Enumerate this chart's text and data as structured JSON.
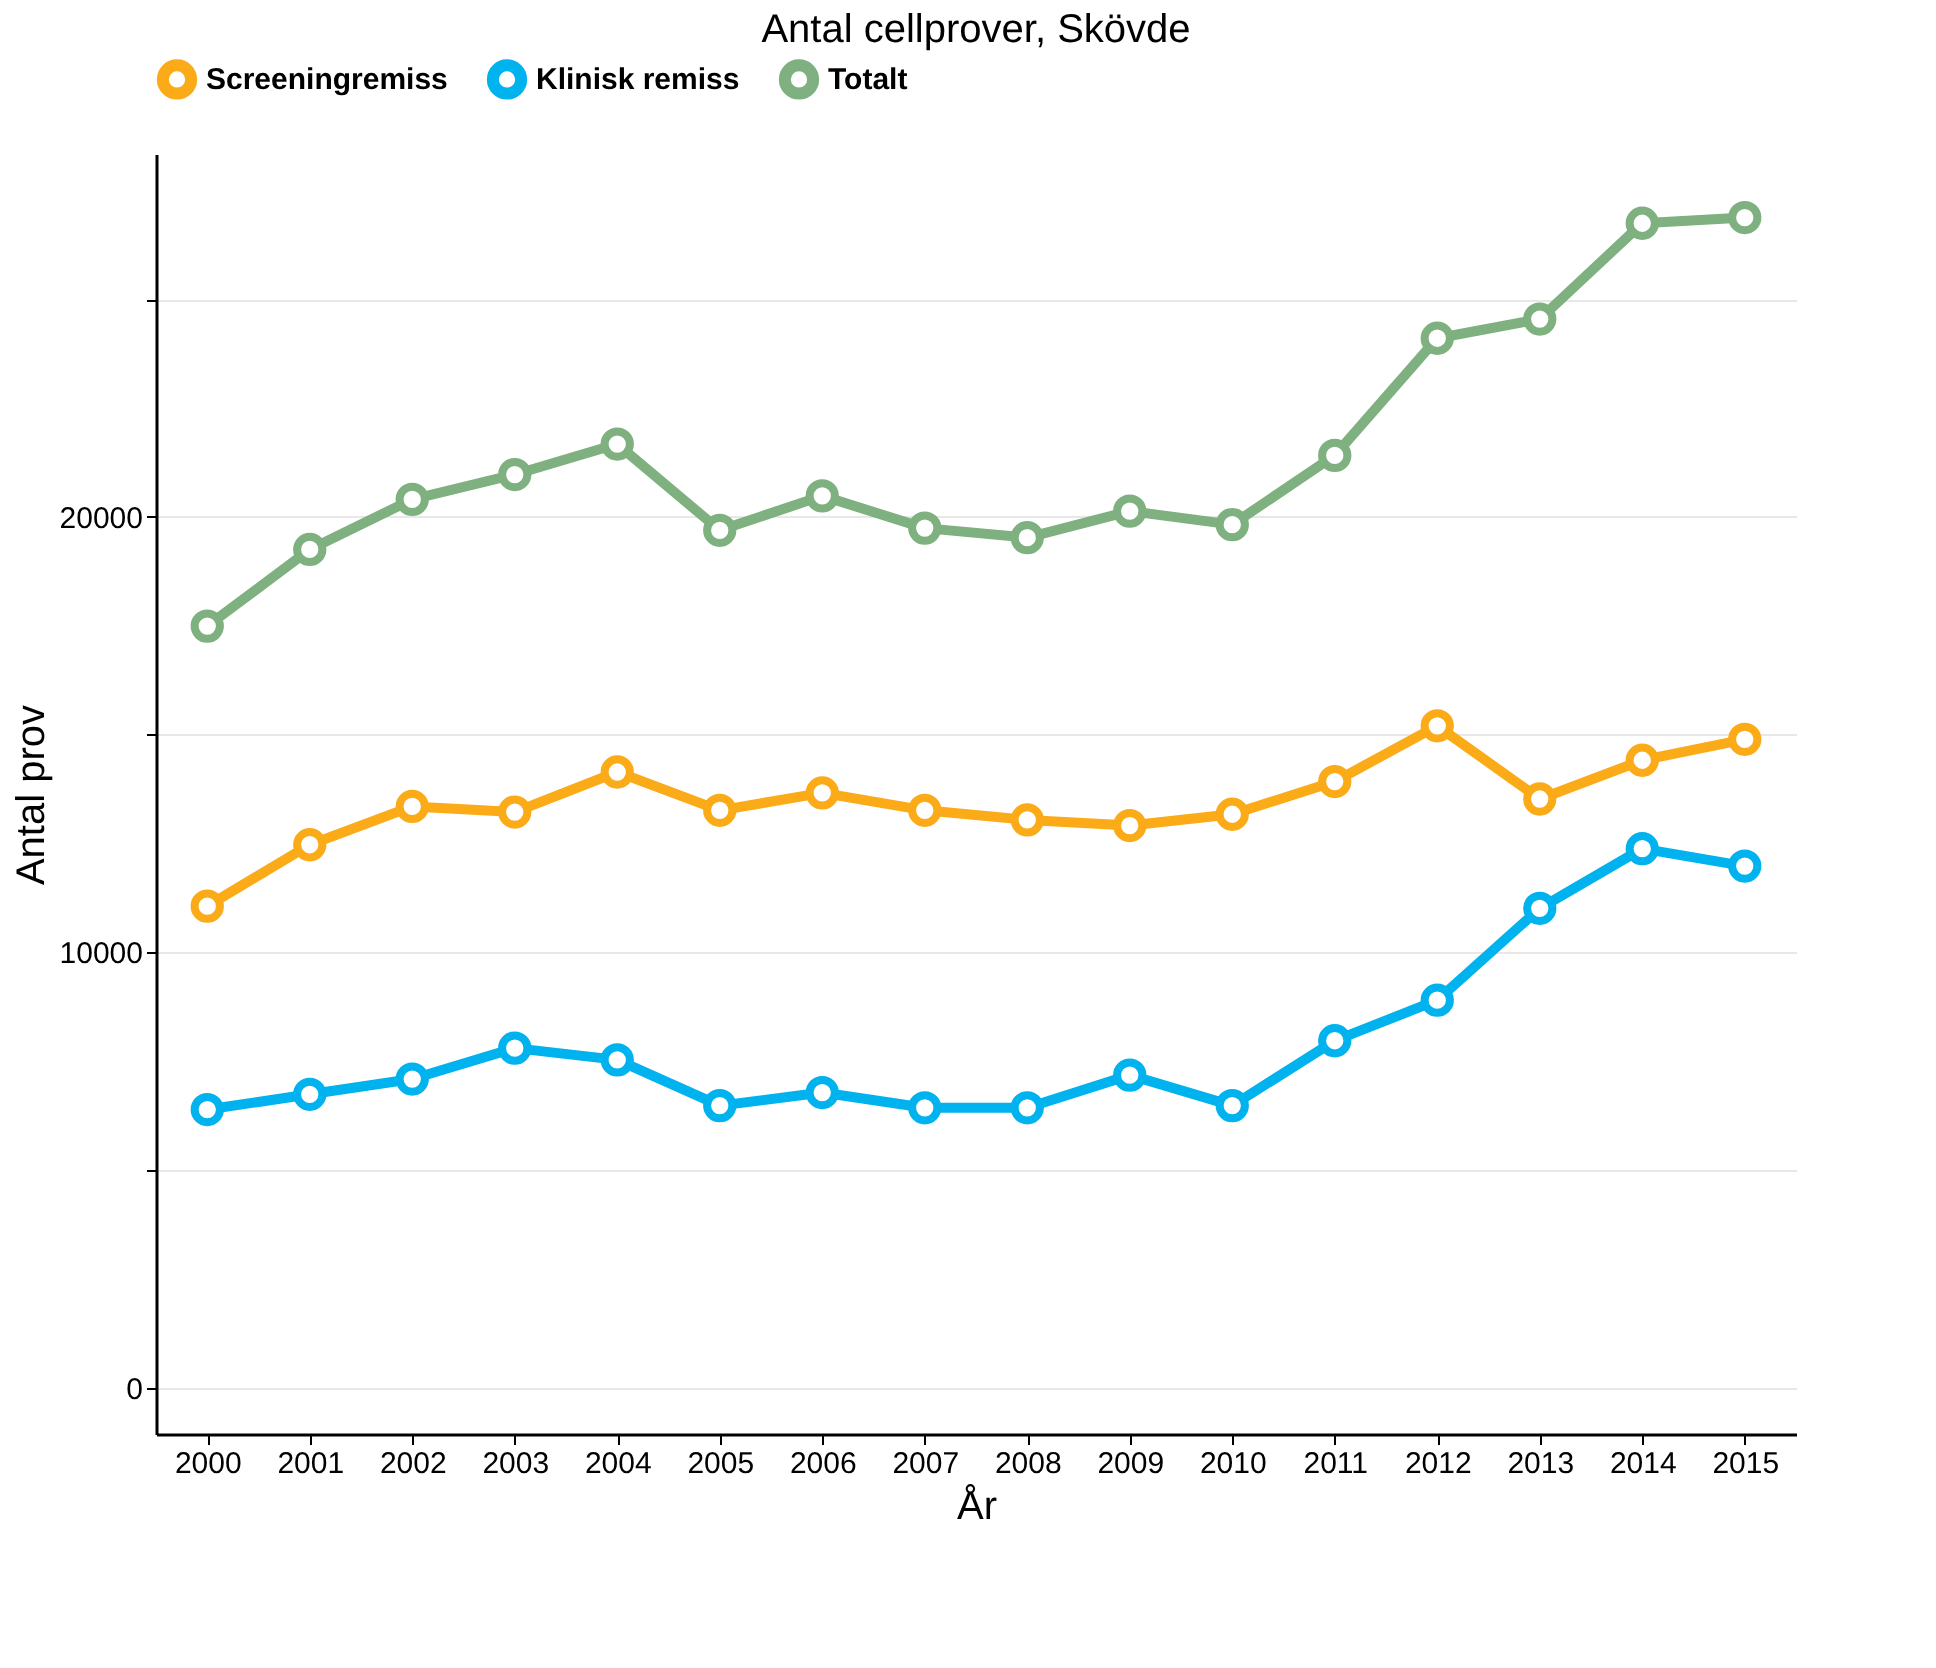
{
  "chart_data": {
    "type": "line",
    "title": "Antal cellprover, Skövde",
    "xlabel": "År",
    "ylabel": "Antal prov",
    "categories": [
      "2000",
      "2001",
      "2002",
      "2003",
      "2004",
      "2005",
      "2006",
      "2007",
      "2008",
      "2009",
      "2010",
      "2011",
      "2012",
      "2013",
      "2014",
      "2015"
    ],
    "series": [
      {
        "name": "Screeningremiss",
        "color": "#fbab18",
        "values": [
          11060,
          12470,
          13350,
          13220,
          14140,
          13260,
          13660,
          13260,
          13040,
          12910,
          13170,
          13920,
          15200,
          13520,
          14410,
          14890
        ]
      },
      {
        "name": "Klinisk remiss",
        "color": "#00b2ee",
        "values": [
          6390,
          6740,
          7090,
          7800,
          7530,
          6480,
          6780,
          6430,
          6430,
          7180,
          6480,
          7970,
          8900,
          11010,
          12380,
          11980
        ]
      },
      {
        "name": "Totalt",
        "color": "#7fb07f",
        "values": [
          17490,
          19250,
          20400,
          20970,
          21670,
          19690,
          20480,
          19740,
          19520,
          20130,
          19820,
          21410,
          24100,
          24540,
          26740,
          26870
        ]
      }
    ],
    "ylim": [
      -1060,
      28330
    ],
    "yticks": [
      0,
      {
        "value": 5000,
        "label": null
      },
      10000,
      {
        "value": 15000,
        "label": null
      },
      20000,
      {
        "value": 25000,
        "label": null
      }
    ],
    "grid": "y",
    "legend": "top",
    "marker": "circle",
    "line_style": "solid"
  }
}
